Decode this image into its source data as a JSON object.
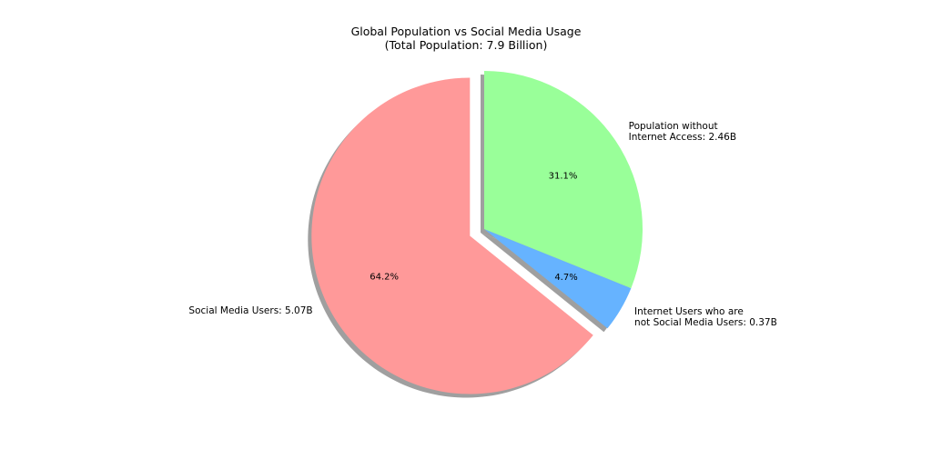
{
  "chart_data": {
    "type": "pie",
    "title": "Global Population vs Social Media Usage",
    "subtitle": "(Total Population: 7.9 Billion)",
    "categories": [
      "Social Media Users: 5.07B",
      "Internet Users who are\nnot Social Media Users: 0.37B",
      "Population without\nInternet Access: 2.46B"
    ],
    "values": [
      64.2,
      4.7,
      31.1
    ],
    "value_labels": [
      "64.2%",
      "4.7%",
      "31.1%"
    ],
    "colors": [
      "#ff9999",
      "#66b3ff",
      "#99ff99"
    ],
    "explode": [
      0.1,
      0,
      0
    ],
    "start_angle": 90,
    "shadow": true
  }
}
